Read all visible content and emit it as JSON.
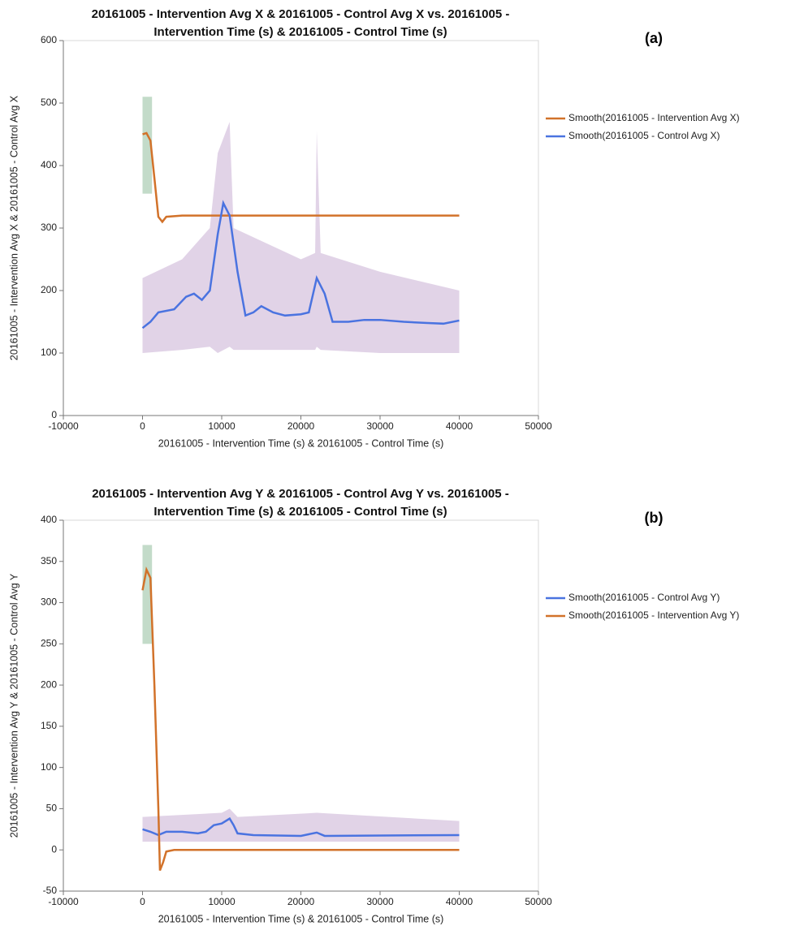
{
  "chart_data": [
    {
      "type": "line",
      "title": [
        "20161005 - Intervention Avg X & 20161005 - Control Avg X vs. 20161005 -",
        "Intervention Time (s) & 20161005 - Control Time (s)"
      ],
      "panel_label": "(a)",
      "x_label": "20161005 - Intervention Time (s) & 20161005 - Control Time (s)",
      "y_label": "20161005 - Intervention Avg X & 20161005 - Control Avg X",
      "xlim": [
        -10000,
        50000
      ],
      "xticks": [
        -10000,
        0,
        10000,
        20000,
        30000,
        40000,
        50000
      ],
      "ylim": [
        0,
        600
      ],
      "yticks": [
        0,
        100,
        200,
        300,
        400,
        500,
        600
      ],
      "legend": "right",
      "bands": [
        {
          "color": "#dccbe3",
          "x": [
            0,
            5000,
            8500,
            9500,
            11000,
            11500,
            20000,
            21800,
            22000,
            22500,
            30000,
            40000
          ],
          "low": [
            100,
            105,
            110,
            100,
            110,
            105,
            105,
            105,
            110,
            105,
            100,
            100
          ],
          "high": [
            220,
            250,
            300,
            420,
            470,
            300,
            250,
            260,
            455,
            260,
            230,
            200
          ]
        },
        {
          "color": "#b9d5bf",
          "x": [
            0,
            1200
          ],
          "low": [
            355,
            355
          ],
          "high": [
            510,
            510
          ]
        }
      ],
      "series": [
        {
          "name": "Smooth(20161005 - Intervention Avg X)",
          "color": "#d2722a",
          "x": [
            0,
            500,
            1000,
            1500,
            2000,
            2500,
            3000,
            5000,
            40000
          ],
          "values": [
            450,
            452,
            440,
            380,
            318,
            310,
            318,
            320,
            320
          ]
        },
        {
          "name": "Smooth(20161005 - Control Avg X)",
          "color": "#4a73e0",
          "x": [
            0,
            1000,
            2000,
            4000,
            5500,
            6500,
            7500,
            8500,
            9500,
            10200,
            11000,
            12000,
            13000,
            14000,
            15000,
            16500,
            18000,
            20000,
            21000,
            22000,
            23000,
            24000,
            26000,
            28000,
            30000,
            33000,
            36000,
            38000,
            40000
          ],
          "values": [
            140,
            150,
            165,
            170,
            190,
            195,
            185,
            200,
            290,
            340,
            320,
            230,
            160,
            165,
            175,
            165,
            160,
            162,
            165,
            220,
            195,
            150,
            150,
            153,
            153,
            150,
            148,
            147,
            152
          ]
        }
      ]
    },
    {
      "type": "line",
      "title": [
        "20161005 - Intervention Avg Y & 20161005 - Control Avg Y vs. 20161005 -",
        "Intervention Time (s) & 20161005 - Control Time (s)"
      ],
      "panel_label": "(b)",
      "x_label": "20161005 - Intervention Time (s) & 20161005 - Control Time (s)",
      "y_label": "20161005 - Intervention Avg Y & 20161005 - Control Avg Y",
      "xlim": [
        -10000,
        50000
      ],
      "xticks": [
        -10000,
        0,
        10000,
        20000,
        30000,
        40000,
        50000
      ],
      "ylim": [
        -50,
        400
      ],
      "yticks": [
        -50,
        0,
        50,
        100,
        150,
        200,
        250,
        300,
        350,
        400
      ],
      "legend": "right",
      "bands": [
        {
          "color": "#dccbe3",
          "x": [
            0,
            10000,
            11000,
            12000,
            22000,
            40000
          ],
          "low": [
            10,
            10,
            10,
            10,
            10,
            10
          ],
          "high": [
            40,
            45,
            50,
            40,
            45,
            35
          ]
        },
        {
          "color": "#b9d5bf",
          "x": [
            0,
            1200
          ],
          "low": [
            250,
            250
          ],
          "high": [
            370,
            370
          ]
        }
      ],
      "series": [
        {
          "name": "Smooth(20161005 - Control Avg Y)",
          "color": "#4a73e0",
          "x": [
            0,
            1000,
            2000,
            3000,
            5000,
            7000,
            8000,
            9000,
            10000,
            11000,
            11500,
            12000,
            14000,
            20000,
            22000,
            23000,
            40000
          ],
          "values": [
            25,
            22,
            18,
            22,
            22,
            20,
            22,
            30,
            32,
            38,
            30,
            20,
            18,
            17,
            21,
            17,
            18
          ]
        },
        {
          "name": "Smooth(20161005 - Intervention Avg Y)",
          "color": "#d2722a",
          "x": [
            0,
            500,
            1000,
            1500,
            2000,
            2200,
            2600,
            3000,
            4000,
            40000
          ],
          "values": [
            315,
            340,
            330,
            200,
            50,
            -25,
            -15,
            -2,
            0,
            0
          ]
        }
      ]
    }
  ]
}
